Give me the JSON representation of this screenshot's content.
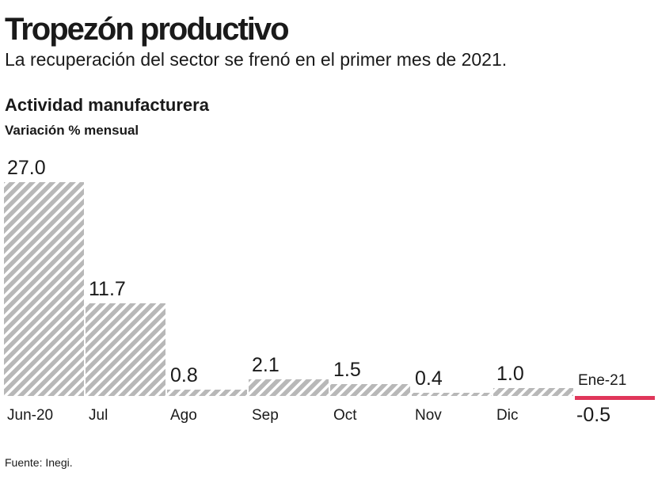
{
  "chart_data": {
    "type": "bar",
    "title": "Tropezón productivo",
    "subtitle": "La recuperación del sector se frenó en el primer mes de 2021.",
    "chart_title": "Actividad manufacturera",
    "y_label": "Variación % mensual",
    "categories": [
      "Jun-20",
      "Jul",
      "Ago",
      "Sep",
      "Oct",
      "Nov",
      "Dic",
      "Ene-21"
    ],
    "values": [
      27,
      11.7,
      0.8,
      2.1,
      1.5,
      0.4,
      1,
      -0.5
    ],
    "value_labels": [
      "27.0",
      "11.7",
      "0.8",
      "2.1",
      "1.5",
      "0.4",
      "1.0",
      "-0.5"
    ],
    "color": "#b8b8b8",
    "negative_color": "#e0365a",
    "source": "Fuente: Inegi."
  }
}
